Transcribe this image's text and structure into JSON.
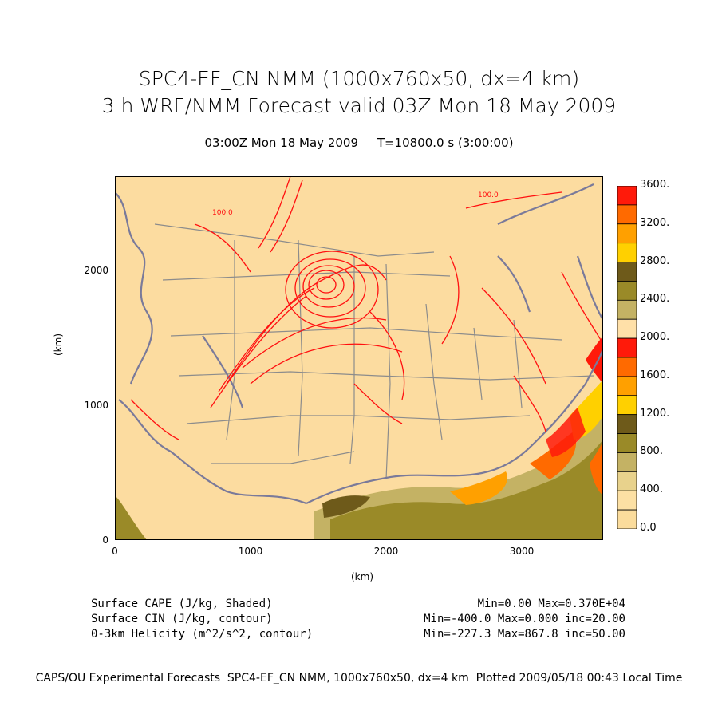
{
  "title_line1": "SPC4-EF_CN NMM (1000x760x50, dx=4 km)",
  "title_line2": "3 h WRF/NMM Forecast valid 03Z Mon 18 May 2009",
  "subtitle": "03:00Z Mon 18 May 2009     T=10800.0 s (3:00:00)",
  "x_axis": {
    "label": "(km)",
    "range": [
      0,
      3600
    ],
    "ticks": [
      "0",
      "1000",
      "2000",
      "3000"
    ]
  },
  "y_axis": {
    "label": "(km)",
    "range": [
      0,
      2700
    ],
    "ticks": [
      "0",
      "1000",
      "2000"
    ]
  },
  "colorbar": {
    "labels": [
      "3600.",
      "3200.",
      "2800.",
      "2400.",
      "2000.",
      "1600.",
      "1200.",
      "800.",
      "400.",
      "0.0"
    ],
    "colors": [
      "#ff1a0a",
      "#ff6a00",
      "#ffa000",
      "#ffd000",
      "#6e5a1a",
      "#9a8a28",
      "#c4b264",
      "#ffe0a8",
      "#ff1a0a",
      "#ff6a00",
      "#ffa000",
      "#ffd000",
      "#6e5a1a",
      "#9a8a28",
      "#c4b264",
      "#e8d28c",
      "#fce0a4",
      "#fbdc9c"
    ]
  },
  "map_colors": {
    "background": "#fcdca0",
    "contour": "#ff1010",
    "border": "#8c8c8c",
    "coast": "#7a7a9a"
  },
  "contour_labels": [
    "100.0",
    "100.0"
  ],
  "legend": [
    {
      "name": "Surface CAPE (J/kg, Shaded)",
      "stats": "Min=0.00 Max=0.370E+04"
    },
    {
      "name": "Surface CIN (J/kg, contour)",
      "stats": "Min=-400.0 Max=0.000 inc=20.00"
    },
    {
      "name": "0-3km Helicity (m^2/s^2, contour)",
      "stats": "Min=-227.3 Max=867.8 inc=50.00"
    }
  ],
  "footer": "CAPS/OU Experimental Forecasts  SPC4-EF_CN NMM, 1000x760x50, dx=4 km  Plotted 2009/05/18 00:43 Local Time"
}
